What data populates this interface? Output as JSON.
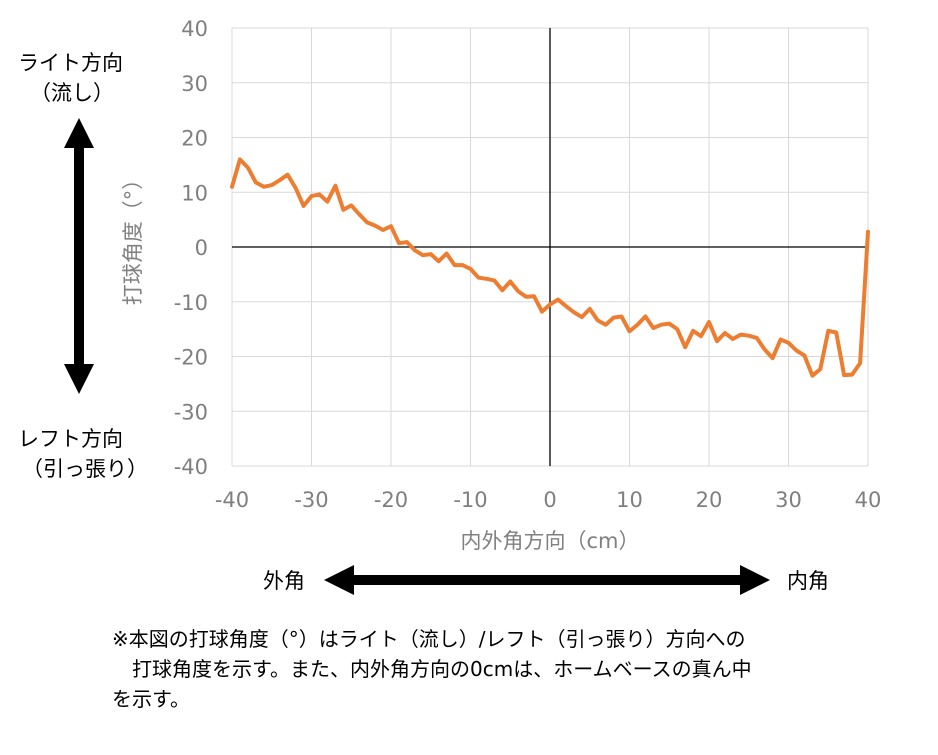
{
  "chart_data": {
    "type": "line",
    "xlabel": "内外角方向（cm）",
    "ylabel": "打球角度（°）",
    "xlim": [
      -40,
      40
    ],
    "ylim": [
      -40,
      40
    ],
    "x_ticks": [
      "-40",
      "-30",
      "-20",
      "-10",
      "0",
      "10",
      "20",
      "30",
      "40"
    ],
    "y_ticks": [
      "40",
      "30",
      "20",
      "10",
      "0",
      "-10",
      "-20",
      "-30",
      "-40"
    ],
    "grid": true,
    "line_color": "#ED7D31",
    "series": [
      {
        "x": [
          -40,
          -39,
          -38,
          -37,
          -36,
          -35,
          -34,
          -33,
          -32,
          -31,
          -30,
          -29,
          -28,
          -27,
          -26,
          -25,
          -24,
          -23,
          -22,
          -21,
          -20,
          -19,
          -18,
          -17,
          -16,
          -15,
          -14,
          -13,
          -12,
          -11,
          -10,
          -9,
          -8,
          -7,
          -6,
          -5,
          -4,
          -3,
          -2,
          -1,
          0,
          1,
          2,
          3,
          4,
          5,
          6,
          7,
          8,
          9,
          10,
          11,
          12,
          13,
          14,
          15,
          16,
          17,
          18,
          19,
          20,
          21,
          22,
          23,
          24,
          25,
          26,
          27,
          28,
          29,
          30,
          31,
          32,
          33,
          34,
          35,
          36,
          37,
          38,
          39,
          40
        ],
        "y": [
          11,
          16,
          14.5,
          11.8,
          11,
          11.3,
          12.2,
          13.2,
          10.8,
          7.5,
          9.3,
          9.6,
          8.3,
          11.2,
          6.8,
          7.6,
          6,
          4.5,
          3.9,
          3.1,
          3.8,
          0.7,
          0.9,
          -0.6,
          -1.5,
          -1.3,
          -2.6,
          -1.2,
          -3.3,
          -3.3,
          -4,
          -5.6,
          -5.8,
          -6.1,
          -7.9,
          -6.3,
          -8.1,
          -9.1,
          -9,
          -11.8,
          -10.5,
          -9.6,
          -10.8,
          -11.9,
          -12.8,
          -11.3,
          -13.4,
          -14.2,
          -12.9,
          -12.7,
          -15.4,
          -14.2,
          -12.7,
          -14.8,
          -14.2,
          -14,
          -15,
          -18.3,
          -15.3,
          -16.3,
          -13.7,
          -17.2,
          -15.7,
          -16.8,
          -16,
          -16.2,
          -16.6,
          -18.7,
          -20.3,
          -16.9,
          -17.5,
          -18.9,
          -19.8,
          -23.5,
          -22.3,
          -15.3,
          -15.6,
          -23.4,
          -23.3,
          -21.2,
          2.8
        ]
      }
    ]
  },
  "labels": {
    "top_line1": "ライト方向",
    "top_line2": "（流し）",
    "bottom_line1": "レフト方向",
    "bottom_line2": "（引っ張り）",
    "left_end": "外角",
    "right_end": "内角"
  },
  "note": {
    "line1": "※本図の打球角度（°）はライト（流し）/レフト（引っ張り）方向への",
    "line2": "　打球角度を示す。また、内外角方向の0cmは、ホームベースの真ん中",
    "line3": "を示す。"
  }
}
